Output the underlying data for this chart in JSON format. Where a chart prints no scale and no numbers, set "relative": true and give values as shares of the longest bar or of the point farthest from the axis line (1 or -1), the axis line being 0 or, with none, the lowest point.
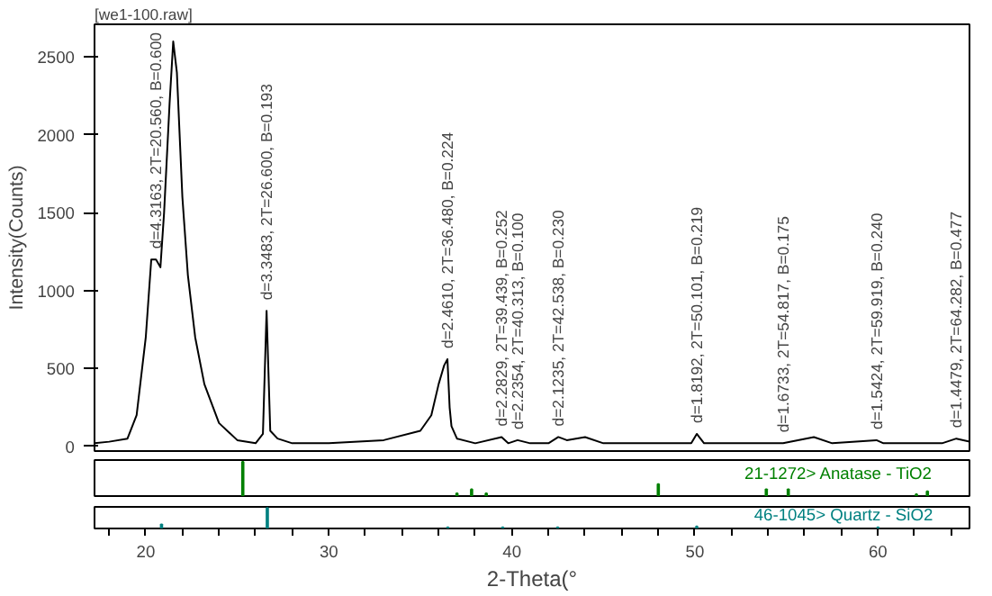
{
  "chart_data": [
    {
      "type": "line",
      "title": "[we1-100.raw]",
      "ylabel": "Intensity(Counts)",
      "xlim": [
        17.2,
        65
      ],
      "ylim": [
        -30,
        2710
      ],
      "yticks": [
        0,
        500,
        1000,
        1500,
        2000,
        2500
      ],
      "tick_labels": "y",
      "grid": false,
      "series": [
        {
          "color": "#000000",
          "x": [
            17.2,
            18,
            19,
            19.5,
            20,
            20.3,
            20.56,
            20.8,
            21.0,
            21.3,
            21.5,
            21.7,
            22,
            22.3,
            22.7,
            23.2,
            24,
            25,
            26,
            26.4,
            26.6,
            26.8,
            27.2,
            28,
            30,
            33,
            35,
            35.6,
            36.0,
            36.2,
            36.3,
            36.48,
            36.6,
            36.7,
            37,
            38,
            39.439,
            39.8,
            40.313,
            41,
            42,
            42.538,
            43,
            44,
            45,
            49.8,
            50.101,
            50.5,
            54.817,
            56.5,
            57.5,
            59.919,
            60.3,
            63.5,
            64.282,
            65
          ],
          "values": [
            20,
            30,
            50,
            200,
            700,
            1200,
            1200,
            1150,
            1500,
            2200,
            2600,
            2400,
            1600,
            1100,
            700,
            400,
            150,
            40,
            20,
            80,
            870,
            100,
            50,
            20,
            20,
            40,
            100,
            200,
            400,
            480,
            520,
            560,
            250,
            130,
            50,
            20,
            60,
            20,
            40,
            20,
            20,
            60,
            40,
            60,
            20,
            20,
            80,
            20,
            20,
            60,
            20,
            40,
            20,
            20,
            50,
            30
          ]
        }
      ],
      "annotations": [
        {
          "text": "d=4.3163, 2T=20.560, B=0.600",
          "x": 20.56,
          "y": 1200
        },
        {
          "text": "d=3.3483, 2T=26.600, B=0.193",
          "x": 26.6,
          "y": 870
        },
        {
          "text": "d=2.4610, 2T=36.480, B=0.224",
          "x": 36.48,
          "y": 560
        },
        {
          "text": "d=2.2829, 2T=39.439, B=0.252",
          "x": 39.439,
          "y": 60
        },
        {
          "text": "d=2.2354, 2T=40.313, B=0.100",
          "x": 40.313,
          "y": 40
        },
        {
          "text": "d=2.1235, 2T=42.538, B=0.230",
          "x": 42.538,
          "y": 60
        },
        {
          "text": "d=1.8192, 2T=50.101, B=0.219",
          "x": 50.101,
          "y": 80
        },
        {
          "text": "d=1.6733, 2T=54.817, B=0.175",
          "x": 54.817,
          "y": 20
        },
        {
          "text": "d=1.5424, 2T=59.919, B=0.240",
          "x": 59.919,
          "y": 40
        },
        {
          "text": "d=1.4479, 2T=64.282, B=0.477",
          "x": 64.282,
          "y": 50
        }
      ]
    },
    {
      "type": "bar",
      "relative": true,
      "xlim": [
        17.2,
        65
      ],
      "tick_labels": false,
      "grid": false,
      "legend": false,
      "series": [
        {
          "name": "21-1272> Anatase - TiO2",
          "color": "#008000",
          "x": [
            25.3,
            37.0,
            37.8,
            38.6,
            48.0,
            53.9,
            55.1,
            62.1,
            62.7
          ],
          "values": [
            1,
            0.08,
            0.2,
            0.08,
            0.35,
            0.2,
            0.2,
            0.05,
            0.14
          ]
        }
      ]
    },
    {
      "type": "bar",
      "relative": true,
      "xlim": [
        17.2,
        65
      ],
      "xlabel": "2-Theta(°",
      "tick_labels": "x",
      "grid": false,
      "legend": false,
      "xticks": [
        {
          "value": 18,
          "label": null
        },
        20,
        {
          "value": 22,
          "label": null
        },
        {
          "value": 24,
          "label": null
        },
        {
          "value": 26,
          "label": null
        },
        {
          "value": 28,
          "label": null
        },
        30,
        {
          "value": 32,
          "label": null
        },
        {
          "value": 34,
          "label": null
        },
        {
          "value": 36,
          "label": null
        },
        {
          "value": 38,
          "label": null
        },
        40,
        {
          "value": 42,
          "label": null
        },
        {
          "value": 44,
          "label": null
        },
        {
          "value": 46,
          "label": null
        },
        {
          "value": 48,
          "label": null
        },
        50,
        {
          "value": 52,
          "label": null
        },
        {
          "value": 54,
          "label": null
        },
        {
          "value": 56,
          "label": null
        },
        {
          "value": 58,
          "label": null
        },
        60,
        {
          "value": 62,
          "label": null
        },
        {
          "value": 64,
          "label": null
        }
      ],
      "series": [
        {
          "name": "46-1045> Quartz - SiO2",
          "color": "#008080",
          "x": [
            20.86,
            26.64,
            36.5,
            39.5,
            42.5,
            50.1,
            60.0
          ],
          "values": [
            0.2,
            1,
            0.05,
            0.05,
            0.05,
            0.1,
            0.05
          ]
        }
      ]
    }
  ]
}
